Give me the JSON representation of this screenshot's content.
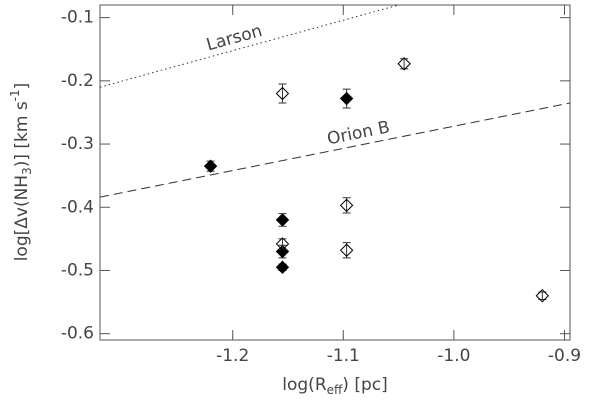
{
  "chart_data": {
    "type": "scatter",
    "x_label_parts": [
      "log(R",
      "eff",
      ") [pc]"
    ],
    "y_label_parts": [
      "log[Δv(NH",
      "3",
      ")]  [km  s",
      "-1",
      "]"
    ],
    "xlim": [
      -1.32,
      -0.895
    ],
    "ylim": [
      -0.61,
      -0.08
    ],
    "xticks": [
      -1.2,
      -1.1,
      {
        "value": -1,
        "label": "-1.0"
      },
      -0.9
    ],
    "yticks": [
      -0.1,
      -0.2,
      -0.3,
      -0.4,
      -0.5,
      -0.6
    ],
    "series": [
      {
        "name": "filled",
        "color": "#000000",
        "filled": true,
        "x": [
          -1.22,
          -1.155,
          -1.155,
          -1.155,
          -1.097
        ],
        "values": [
          -0.335,
          -0.42,
          -0.47,
          -0.495,
          -0.228
        ],
        "errors": [
          0.008,
          0.01,
          0.01,
          0.005,
          0.015
        ]
      },
      {
        "name": "open",
        "color": "#000000",
        "filled": false,
        "x": [
          -1.155,
          -1.045,
          -1.097,
          -1.155,
          -1.097,
          -0.92
        ],
        "values": [
          -0.22,
          -0.173,
          -0.397,
          -0.458,
          -0.468,
          -0.54
        ],
        "errors": [
          0.015,
          0.008,
          0.012,
          0.008,
          0.012,
          0.006
        ]
      }
    ],
    "lines": [
      {
        "label": "Larson",
        "style": "dotted",
        "x": [
          -1.32,
          -1.05
        ],
        "values": [
          -0.21,
          -0.08
        ]
      },
      {
        "label": "Orion B",
        "style": "dashed",
        "x": [
          -1.32,
          -0.895
        ],
        "values": [
          -0.384,
          -0.235
        ]
      }
    ]
  }
}
